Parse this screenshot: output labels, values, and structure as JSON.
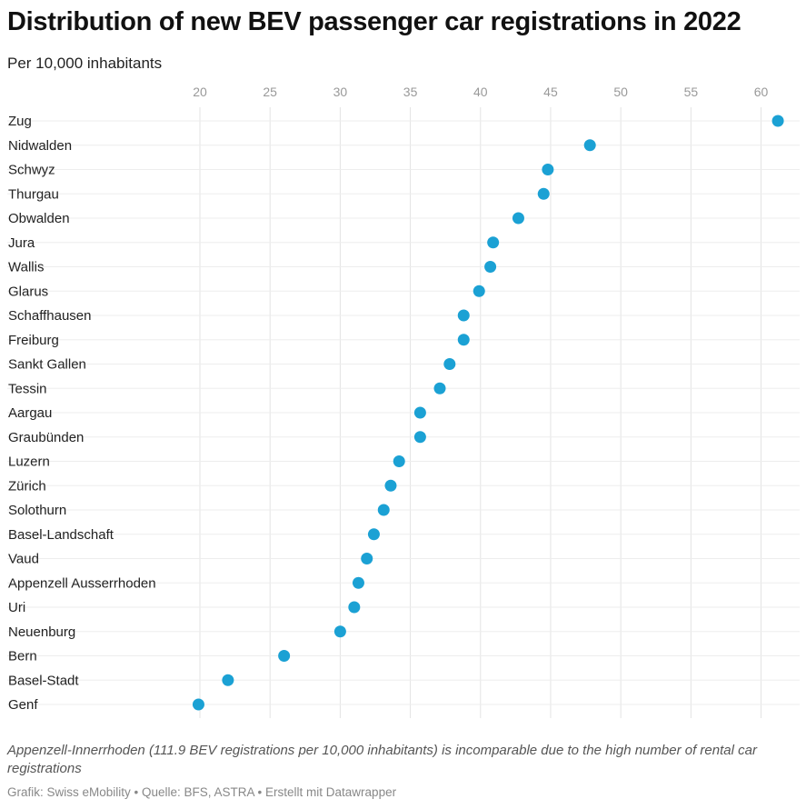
{
  "chart_data": {
    "type": "scatter",
    "title": "Distribution of new BEV passenger car registrations in 2022",
    "subtitle": "Per 10,000 inhabitants",
    "xlim": [
      20,
      61
    ],
    "xticks": [
      20,
      25,
      30,
      35,
      40,
      45,
      50,
      55,
      60
    ],
    "grid": true,
    "point_color": "#1ba1d4",
    "categories": [
      "Zug",
      "Nidwalden",
      "Schwyz",
      "Thurgau",
      "Obwalden",
      "Jura",
      "Wallis",
      "Glarus",
      "Schaffhausen",
      "Freiburg",
      "Sankt Gallen",
      "Tessin",
      "Aargau",
      "Graubünden",
      "Luzern",
      "Zürich",
      "Solothurn",
      "Basel-Landschaft",
      "Vaud",
      "Appenzell Ausserrhoden",
      "Uri",
      "Neuenburg",
      "Bern",
      "Basel-Stadt",
      "Genf"
    ],
    "values": [
      61.2,
      47.8,
      44.8,
      44.5,
      42.7,
      40.9,
      40.7,
      39.9,
      38.8,
      38.8,
      37.8,
      37.1,
      35.7,
      35.7,
      34.2,
      33.6,
      33.1,
      32.4,
      31.9,
      31.3,
      31.0,
      30.0,
      26.0,
      22.0,
      19.9
    ],
    "note": "Appenzell-Innerrhoden (111.9 BEV registrations per 10,000 inhabitants) is incomparable due to the high number of rental car registrations",
    "source": "Grafik: Swiss eMobility • Quelle: BFS, ASTRA • Erstellt mit Datawrapper"
  }
}
